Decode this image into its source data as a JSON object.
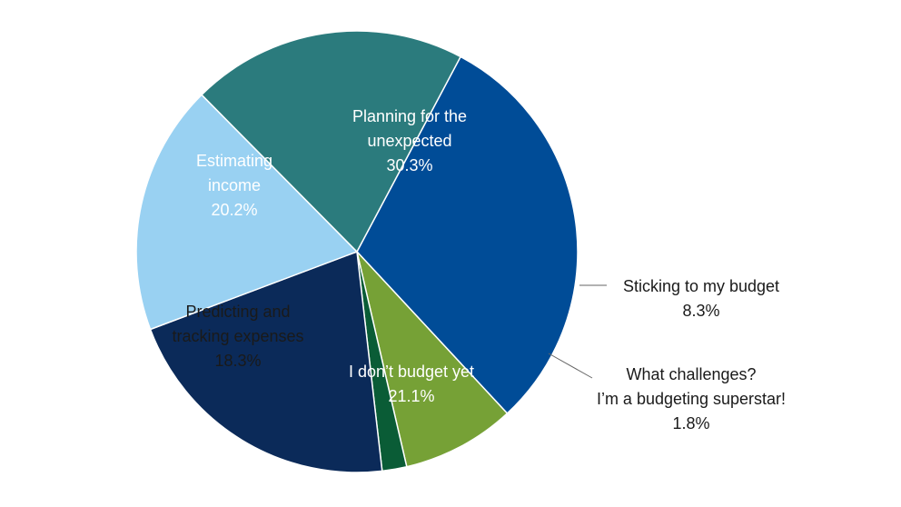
{
  "chart_data": {
    "type": "pie",
    "title": "",
    "slices": [
      {
        "label_lines": [
          "Planning for the",
          "unexpected"
        ],
        "value": 30.3,
        "value_text": "30.3%",
        "color": "#004c97"
      },
      {
        "label_lines": [
          "Sticking to my budget"
        ],
        "value": 8.3,
        "value_text": "8.3%",
        "color": "#76a136"
      },
      {
        "label_lines": [
          "What challenges?",
          "I’m a budgeting superstar!"
        ],
        "value": 1.8,
        "value_text": "1.8%",
        "color": "#0a5c36"
      },
      {
        "label_lines": [
          "I don’t budget yet"
        ],
        "value": 21.1,
        "value_text": "21.1%",
        "color": "#0b2a59"
      },
      {
        "label_lines": [
          "Predicting and",
          "tracking expenses"
        ],
        "value": 18.3,
        "value_text": "18.3%",
        "color": "#99d1f2"
      },
      {
        "label_lines": [
          "Estimating",
          "income"
        ],
        "value": 20.2,
        "value_text": "20.2%",
        "color": "#2b7b7d"
      }
    ]
  }
}
